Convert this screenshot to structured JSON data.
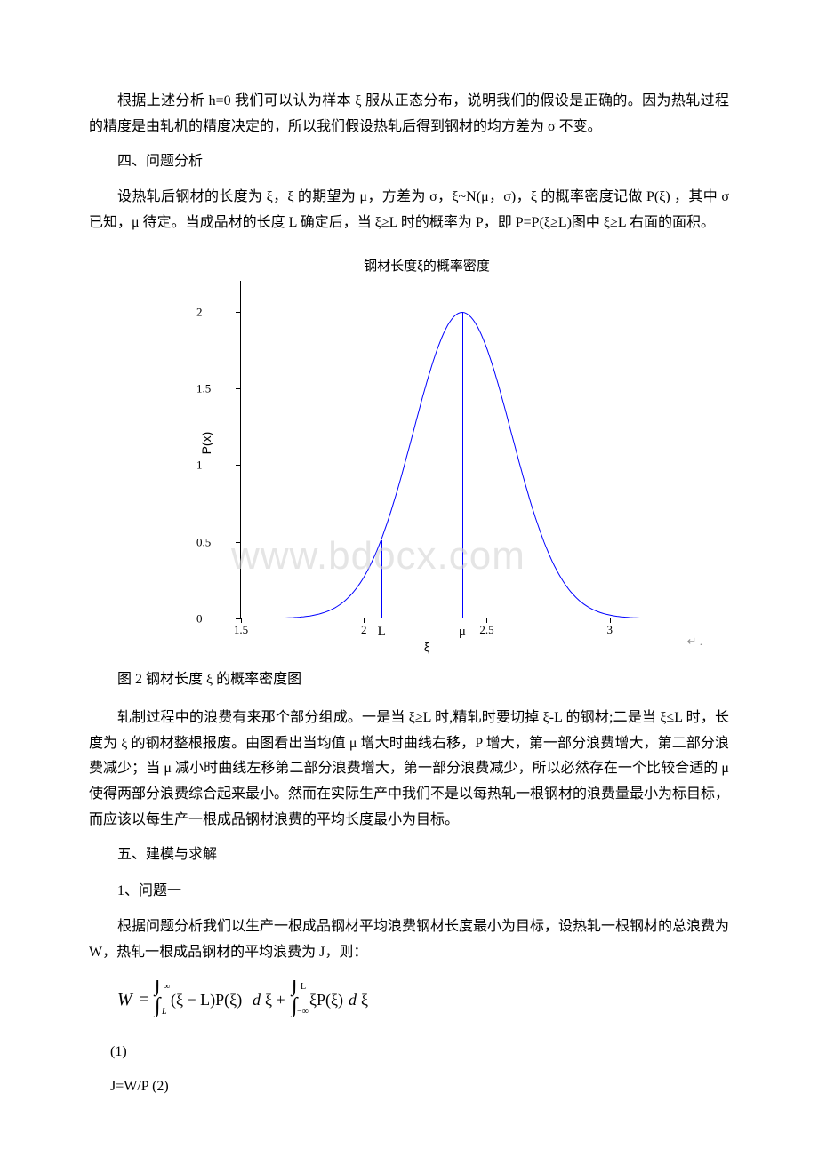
{
  "para1": "根据上述分析 h=0 我们可以认为样本 ξ 服从正态分布，说明我们的假设是正确的。因为热轧过程的精度是由轧机的精度决定的，所以我们假设热轧后得到钢材的均方差为 σ 不变。",
  "section4": "四、问题分析",
  "para2": "设热轧后钢材的长度为 ξ，ξ 的期望为 μ，方差为 σ，ξ~N(μ，σ)，ξ 的概率密度记做 P(ξ) ，其中 σ 已知，μ 待定。当成品材的长度 L 确定后，当 ξ≥L 时的概率为 P，即 P=P(ξ≥L)图中 ξ≥L 右面的面积。",
  "chart": {
    "title": "钢材长度ξ的概率密度",
    "xlabel": "ξ",
    "ylabel": "P(x)",
    "xlim": [
      1.5,
      3.2
    ],
    "ylim": [
      0,
      2.2
    ],
    "xticks": [
      1.5,
      2,
      2.5,
      3
    ],
    "yticks": [
      0,
      0.5,
      1,
      1.5,
      2
    ],
    "mu_position": 2.4,
    "L_position": 2.07,
    "L_label": "L",
    "mu_label": "μ",
    "curve_color": "#0000ff",
    "line_color": "#0000ff",
    "background_color": "#ffffff",
    "mean": 2.4,
    "sigma": 0.2,
    "peak_height": 1.995
  },
  "watermark_text": "www.bdocx.com",
  "figure_caption": "图 2  钢材长度 ξ 的概率密度图",
  "para3": "轧制过程中的浪费有来那个部分组成。一是当 ξ≥L 时,精轧时要切掉 ξ-L 的钢材;二是当 ξ≤L 时，长度为 ξ 的钢材整根报废。由图看出当均值 μ 增大时曲线右移，P 增大，第一部分浪费增大，第二部分浪费减少；当 μ 减小时曲线左移第二部分浪费增大，第一部分浪费减少，所以必然存在一个比较合适的 μ 使得两部分浪费综合起来最小。然而在实际生产中我们不是以每热轧一根钢材的浪费量最小为标目标，而应该以每生产一根成品钢材浪费的平均长度最小为目标。",
  "section5": "五、建模与求解",
  "sub5_1": "1、问题一",
  "para4": "根据问题分析我们以生产一根成品钢材平均浪费钢材长度最小为目标，设热轧一根钢材的总浪费为 W，热轧一根成品钢材的平均浪费为 J，则：",
  "eq1_number": "(1)",
  "eq2": "J=W/P (2)"
}
